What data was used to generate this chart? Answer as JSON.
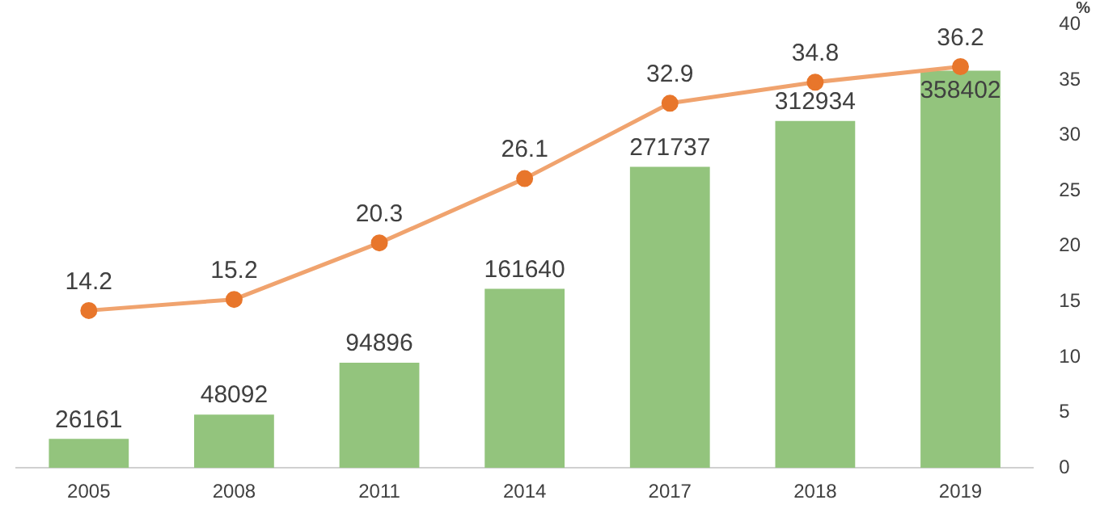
{
  "chart_data": {
    "type": "bar",
    "categories": [
      "2005",
      "2008",
      "2011",
      "2014",
      "2017",
      "2018",
      "2019"
    ],
    "series": [
      {
        "color": "#93c47d",
        "values": [
          26161,
          48092,
          94896,
          161640,
          271737,
          312934,
          358402
        ]
      },
      {
        "type": "line",
        "axis": "y2",
        "color": "#f0a36e",
        "values": [
          14.2,
          15.2,
          20.3,
          26.1,
          32.9,
          34.8,
          36.2
        ]
      }
    ],
    "y2lim": [
      0,
      40
    ],
    "y2ticks": [
      0,
      5,
      10,
      15,
      20,
      25,
      30,
      35,
      40
    ],
    "y2label": "%",
    "data_labels": true,
    "marker": "circle",
    "grid": false,
    "legend": false
  }
}
